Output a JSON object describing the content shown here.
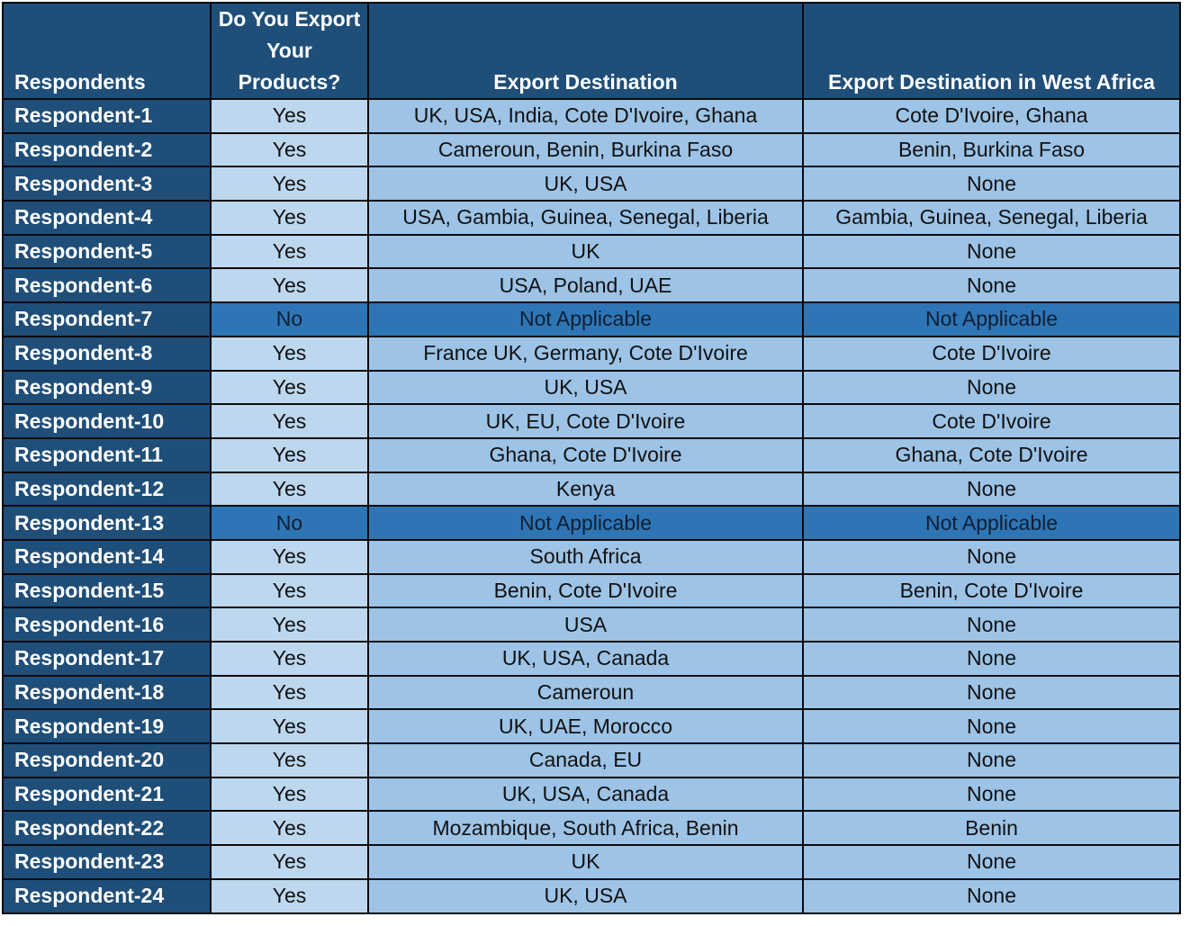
{
  "columns": [
    "Respondents",
    "Do You Export Your Products?",
    "Export Destination",
    "Export Destination in West Africa"
  ],
  "rows": [
    {
      "respondent": "Respondent-1",
      "export": "Yes",
      "destination": "UK, USA, India, Cote D'Ivoire, Ghana",
      "west_africa": "Cote D'Ivoire, Ghana"
    },
    {
      "respondent": "Respondent-2",
      "export": "Yes",
      "destination": "Cameroun, Benin, Burkina Faso",
      "west_africa": "Benin, Burkina Faso"
    },
    {
      "respondent": "Respondent-3",
      "export": "Yes",
      "destination": "UK, USA",
      "west_africa": "None"
    },
    {
      "respondent": "Respondent-4",
      "export": "Yes",
      "destination": "USA, Gambia, Guinea, Senegal, Liberia",
      "west_africa": "Gambia, Guinea, Senegal, Liberia"
    },
    {
      "respondent": "Respondent-5",
      "export": "Yes",
      "destination": "UK",
      "west_africa": "None"
    },
    {
      "respondent": "Respondent-6",
      "export": "Yes",
      "destination": "USA, Poland, UAE",
      "west_africa": "None"
    },
    {
      "respondent": "Respondent-7",
      "export": "No",
      "destination": "Not Applicable",
      "west_africa": "Not Applicable"
    },
    {
      "respondent": "Respondent-8",
      "export": "Yes",
      "destination": "France UK, Germany, Cote D'Ivoire",
      "west_africa": "Cote D'Ivoire"
    },
    {
      "respondent": "Respondent-9",
      "export": "Yes",
      "destination": "UK, USA",
      "west_africa": "None"
    },
    {
      "respondent": "Respondent-10",
      "export": "Yes",
      "destination": "UK, EU, Cote D'Ivoire",
      "west_africa": "Cote D'Ivoire"
    },
    {
      "respondent": "Respondent-11",
      "export": "Yes",
      "destination": "Ghana, Cote D'Ivoire",
      "west_africa": "Ghana, Cote D'Ivoire"
    },
    {
      "respondent": "Respondent-12",
      "export": "Yes",
      "destination": "Kenya",
      "west_africa": "None"
    },
    {
      "respondent": "Respondent-13",
      "export": "No",
      "destination": "Not Applicable",
      "west_africa": "Not Applicable"
    },
    {
      "respondent": "Respondent-14",
      "export": "Yes",
      "destination": "South Africa",
      "west_africa": "None"
    },
    {
      "respondent": "Respondent-15",
      "export": "Yes",
      "destination": "Benin, Cote D'Ivoire",
      "west_africa": "Benin, Cote D'Ivoire"
    },
    {
      "respondent": "Respondent-16",
      "export": "Yes",
      "destination": "USA",
      "west_africa": "None"
    },
    {
      "respondent": "Respondent-17",
      "export": "Yes",
      "destination": "UK, USA, Canada",
      "west_africa": "None"
    },
    {
      "respondent": "Respondent-18",
      "export": "Yes",
      "destination": "Cameroun",
      "west_africa": "None"
    },
    {
      "respondent": "Respondent-19",
      "export": "Yes",
      "destination": "UK, UAE, Morocco",
      "west_africa": "None"
    },
    {
      "respondent": "Respondent-20",
      "export": "Yes",
      "destination": "Canada, EU",
      "west_africa": "None"
    },
    {
      "respondent": "Respondent-21",
      "export": "Yes",
      "destination": "UK, USA, Canada",
      "west_africa": "None"
    },
    {
      "respondent": "Respondent-22",
      "export": "Yes",
      "destination": "Mozambique, South Africa, Benin",
      "west_africa": "Benin"
    },
    {
      "respondent": "Respondent-23",
      "export": "Yes",
      "destination": "UK",
      "west_africa": "None"
    },
    {
      "respondent": "Respondent-24",
      "export": "Yes",
      "destination": "UK, USA",
      "west_africa": "None"
    }
  ],
  "colors": {
    "header_bg": "#1f4e78",
    "yes_cell_bg": "#bdd7ee",
    "destination_bg": "#9dc3e6",
    "not_applicable_bg": "#2e75b6"
  }
}
